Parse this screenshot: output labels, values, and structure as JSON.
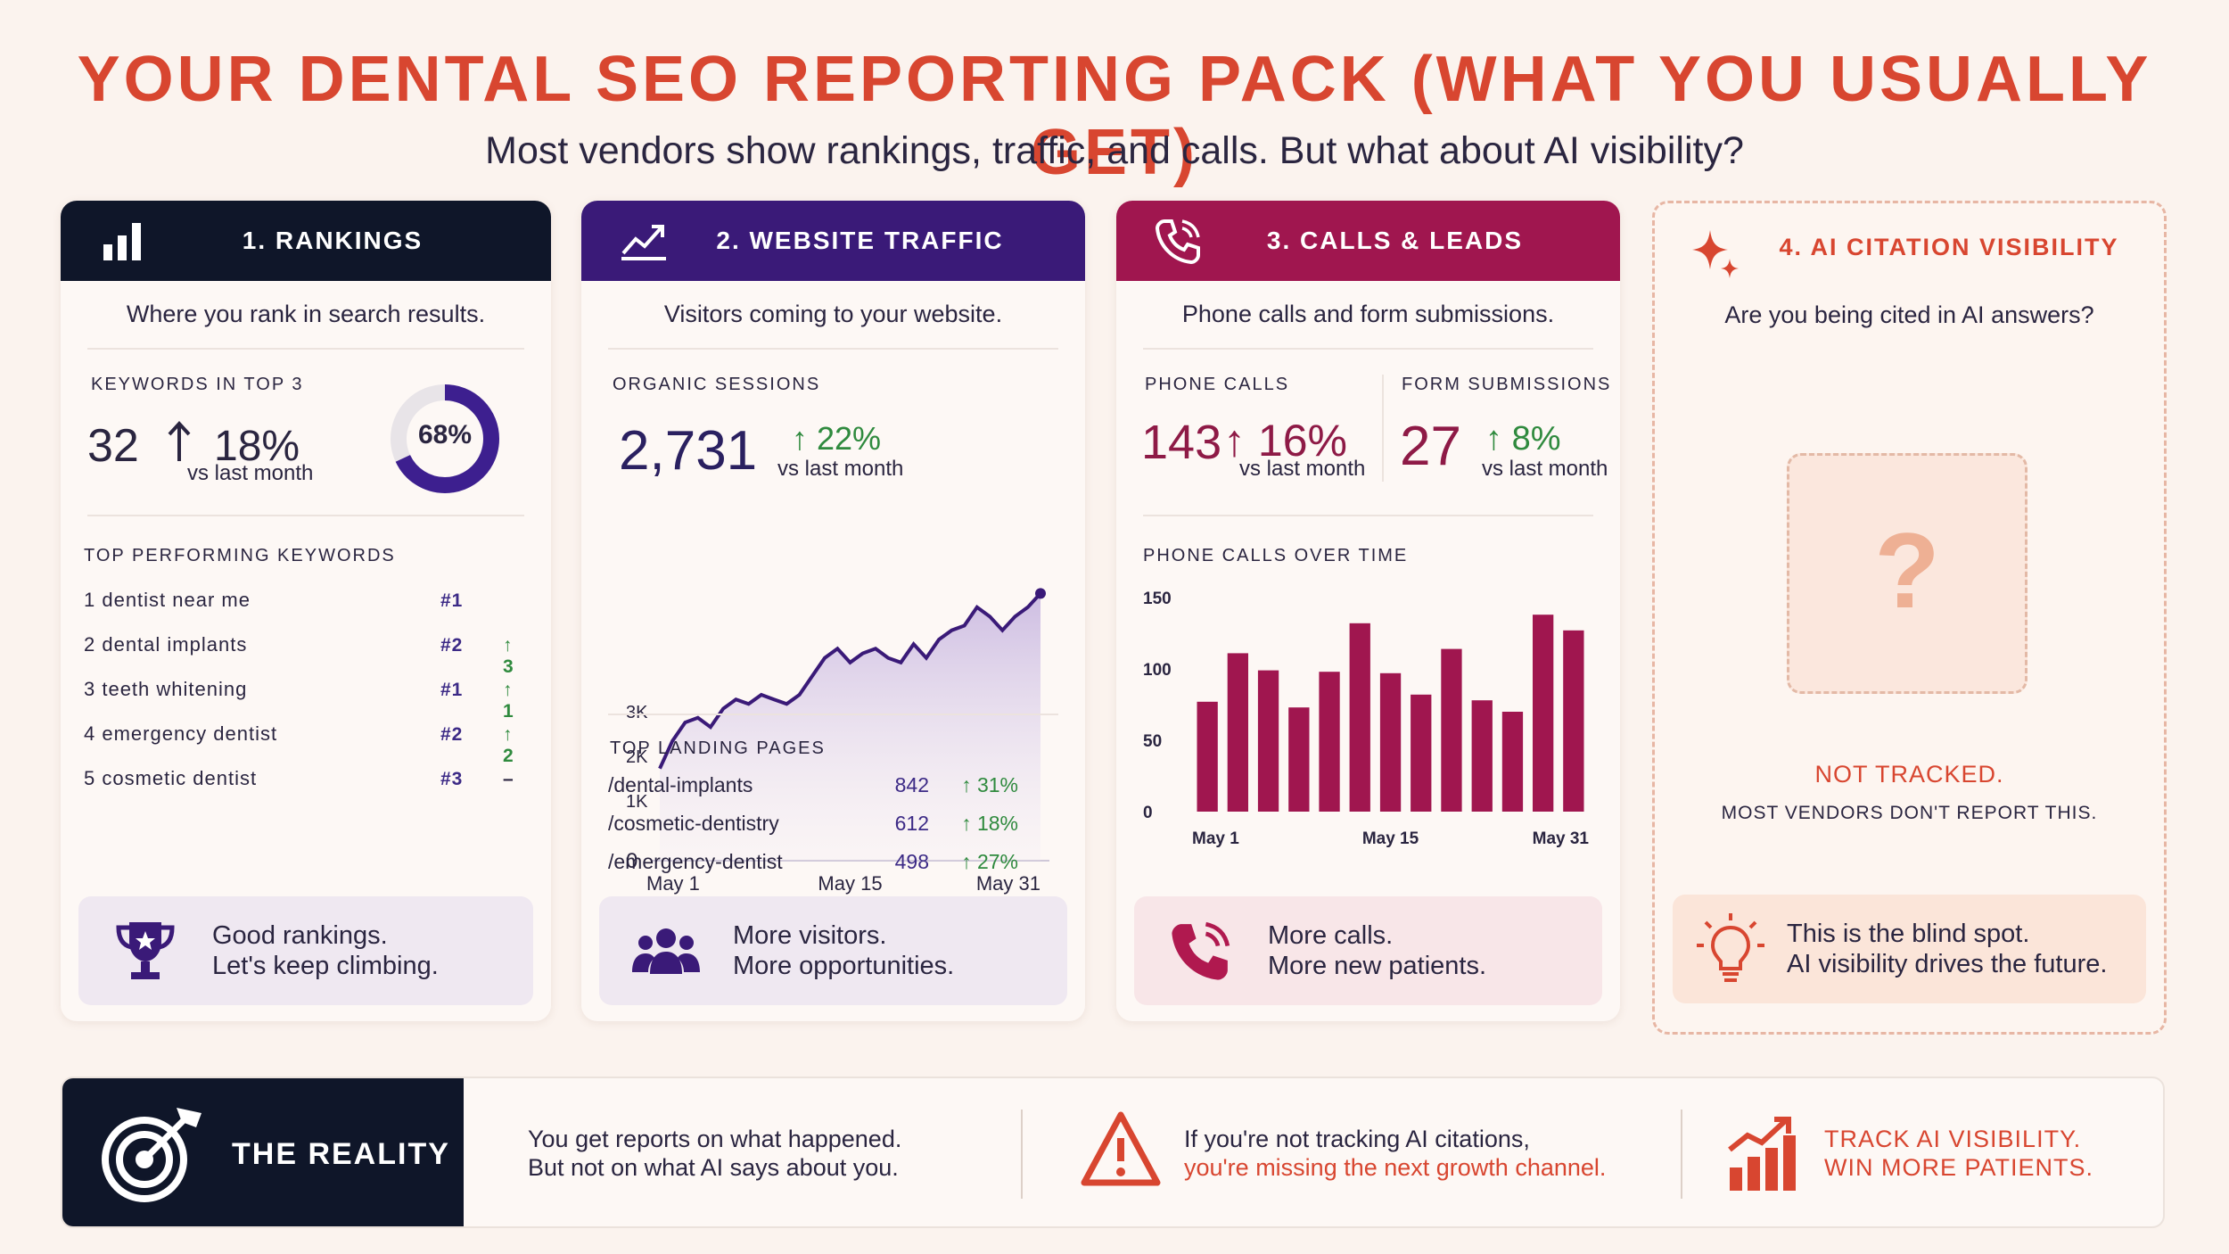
{
  "header": {
    "title": "YOUR DENTAL SEO REPORTING PACK (WHAT YOU USUALLY GET)",
    "subtitle": "Most vendors show rankings, traffic, and calls. But what about AI visibility?"
  },
  "colors": {
    "accent_red": "#d84630",
    "rankings_header": "#0f1629",
    "traffic_header": "#3a1a78",
    "calls_header": "#a0164f",
    "green": "#2f8a3e",
    "purple": "#3c2a86"
  },
  "rankings": {
    "title": "1. RANKINGS",
    "icon": "bar-chart-icon",
    "description": "Where you rank in search results.",
    "kpi_label": "KEYWORDS IN TOP 3",
    "kpi_value": "32",
    "kpi_change": "18%",
    "kpi_caption": "vs last month",
    "donut_label": "68%",
    "donut_fraction": 0.68,
    "keywords_label": "TOP PERFORMING KEYWORDS",
    "keywords": [
      {
        "name": "1 dentist near me",
        "rank": "#1",
        "change": ""
      },
      {
        "name": "2 dental implants",
        "rank": "#2",
        "change": "3"
      },
      {
        "name": "3  teeth whitening",
        "rank": "#1",
        "change": "1"
      },
      {
        "name": "4 emergency dentist",
        "rank": "#2",
        "change": "2"
      },
      {
        "name": "5 cosmetic dentist",
        "rank": "#3",
        "change": "–"
      }
    ],
    "banner_line1": "Good rankings.",
    "banner_line2": "Let's keep climbing."
  },
  "traffic": {
    "title": "2. WEBSITE TRAFFIC",
    "icon": "trend-up-icon",
    "description": "Visitors coming to your website.",
    "kpi_label": "ORGANIC SESSIONS",
    "kpi_value": "2,731",
    "kpi_change": "22%",
    "kpi_caption": "vs last month",
    "landing_label": "TOP LANDING PAGES",
    "landing_pages": [
      {
        "path": "/dental-implants",
        "value": "842",
        "change": "31%"
      },
      {
        "path": "/cosmetic-dentistry",
        "value": "612",
        "change": "18%"
      },
      {
        "path": "/emergency-dentist",
        "value": "498",
        "change": "27%"
      }
    ],
    "banner_line1": "More visitors.",
    "banner_line2": "More opportunities."
  },
  "calls": {
    "title": "3. CALLS & LEADS",
    "icon": "phone-icon",
    "description": "Phone calls and form submissions.",
    "phone_label": "PHONE CALLS",
    "phone_value": "143",
    "phone_change": "16%",
    "phone_caption": "vs last month",
    "form_label": "FORM SUBMISSIONS",
    "form_value": "27",
    "form_change": "8%",
    "form_caption": "vs last month",
    "chart_label": "PHONE CALLS OVER TIME",
    "banner_line1": "More calls.",
    "banner_line2": "More new patients."
  },
  "ai": {
    "title": "4. AI CITATION VISIBILITY",
    "icon": "sparkle-icon",
    "description": "Are you being cited in AI answers?",
    "question_mark": "?",
    "not_tracked": "NOT TRACKED.",
    "not_tracked_sub": "MOST VENDORS DON'T REPORT THIS.",
    "banner_line1": "This is the blind spot.",
    "banner_line2": "AI visibility drives the future."
  },
  "bottom": {
    "reality_label": "THE REALITY",
    "text1_line1": "You get reports on what happened.",
    "text1_line2": "But not on what AI says about you.",
    "text2_line1": "If you're not tracking AI citations,",
    "text2_line2": "you're missing the next growth channel.",
    "text3_line1": "TRACK AI VISIBILITY.",
    "text3_line2": "WIN MORE PATIENTS."
  },
  "chart_data": [
    {
      "type": "area",
      "x_ticks": [
        "May 1",
        "May 15",
        "May 31"
      ],
      "y_ticks": [
        "0",
        "1K",
        "2K",
        "3K"
      ],
      "ylim": [
        0,
        3000
      ],
      "values": [
        1000,
        1300,
        1500,
        1550,
        1450,
        1650,
        1750,
        1700,
        1800,
        1750,
        1700,
        1800,
        2000,
        2200,
        2300,
        2150,
        2250,
        2300,
        2200,
        2150,
        2350,
        2200,
        2400,
        2500,
        2550,
        2750,
        2650,
        2500,
        2650,
        2750,
        2900
      ]
    },
    {
      "type": "bar",
      "x_ticks": [
        "May 1",
        "May 15",
        "May 31"
      ],
      "y_ticks": [
        "0",
        "50",
        "100",
        "150"
      ],
      "ylim": [
        0,
        150
      ],
      "values": [
        77,
        111,
        99,
        73,
        98,
        132,
        97,
        82,
        114,
        78,
        70,
        138,
        127
      ]
    }
  ]
}
